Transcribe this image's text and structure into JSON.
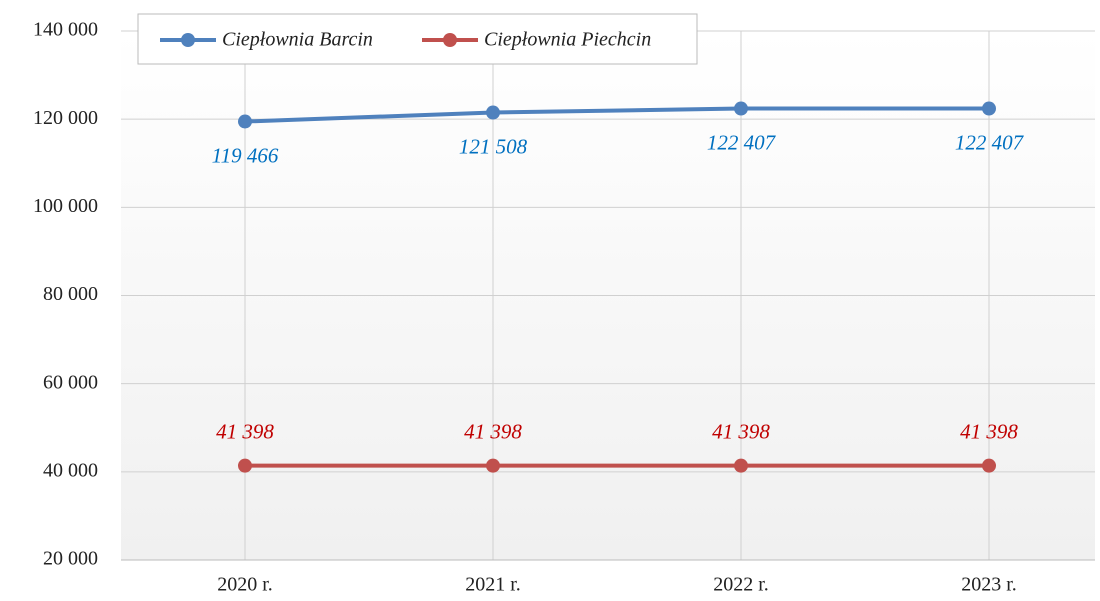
{
  "chart_data": {
    "type": "line",
    "categories": [
      "2020 r.",
      "2021 r.",
      "2022 r.",
      "2023 r."
    ],
    "series": [
      {
        "name": "Ciepłownia Barcin",
        "color": "#4f81bd",
        "label_color": "#0070c0",
        "label_position": "below",
        "values": [
          119466,
          121508,
          122407,
          122407
        ],
        "value_labels": [
          "119 466",
          "121 508",
          "122 407",
          "122 407"
        ]
      },
      {
        "name": "Ciepłownia Piechcin",
        "color": "#c0504d",
        "label_color": "#c00000",
        "label_position": "above",
        "values": [
          41398,
          41398,
          41398,
          41398
        ],
        "value_labels": [
          "41 398",
          "41 398",
          "41 398",
          "41 398"
        ]
      }
    ],
    "ylim": [
      20000,
      140000
    ],
    "yticks": [
      {
        "value": 20000,
        "label": "20 000"
      },
      {
        "value": 40000,
        "label": "40 000"
      },
      {
        "value": 60000,
        "label": "60 000"
      },
      {
        "value": 80000,
        "label": "80 000"
      },
      {
        "value": 100000,
        "label": "100 000"
      },
      {
        "value": 120000,
        "label": "120 000"
      },
      {
        "value": 140000,
        "label": "140 000"
      }
    ],
    "grid": true,
    "legend": "top-left"
  }
}
